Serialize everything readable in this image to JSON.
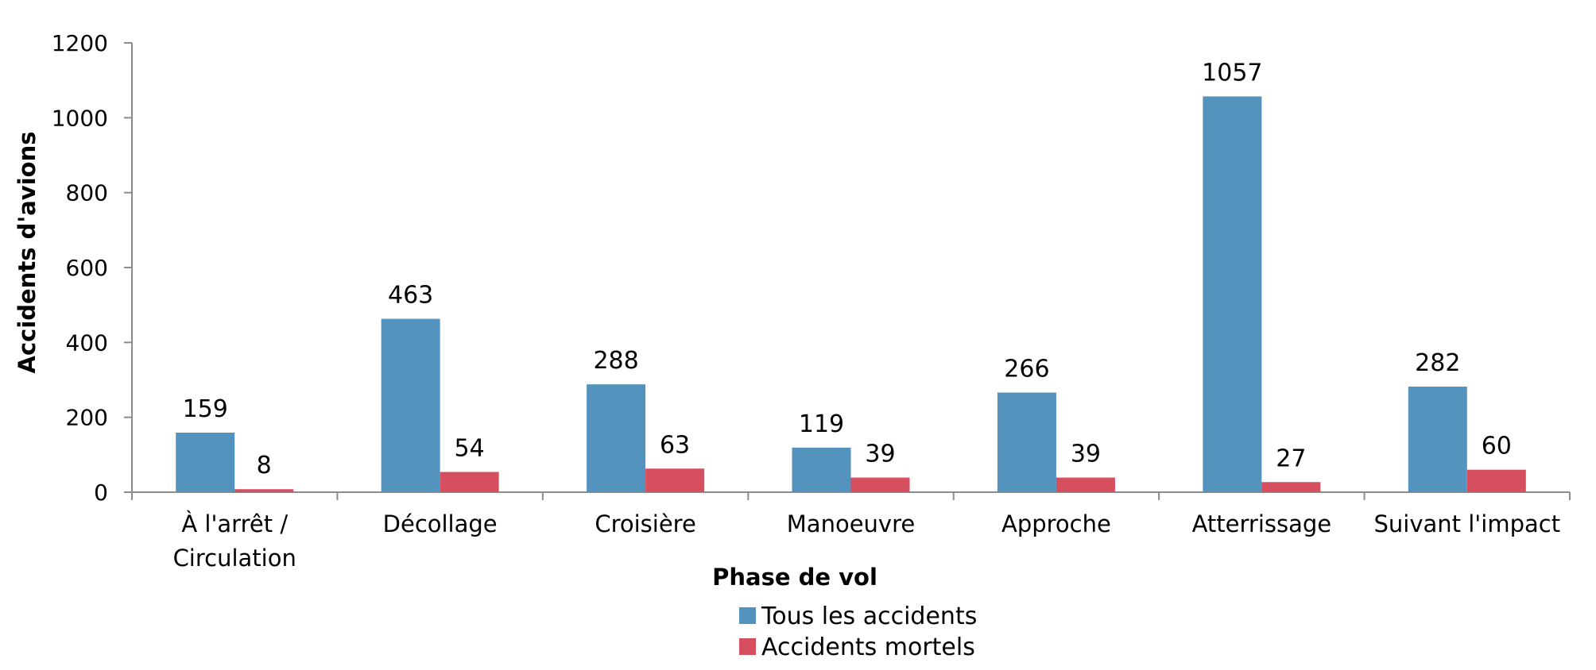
{
  "chart_data": {
    "type": "bar",
    "title": "",
    "xlabel": "Phase de vol",
    "ylabel": "Accidents d'avions",
    "ylim": [
      0,
      1200
    ],
    "yticks": [
      0,
      200,
      400,
      600,
      800,
      1000,
      1200
    ],
    "grid": false,
    "legend_position": "bottom",
    "categories": [
      [
        "À l'arrêt /",
        "Circulation"
      ],
      [
        "Décollage"
      ],
      [
        "Croisière"
      ],
      [
        "Manoeuvre"
      ],
      [
        "Approche"
      ],
      [
        "Atterrissage"
      ],
      [
        "Suivant l'impact"
      ]
    ],
    "series": [
      {
        "name": "Tous les accidents",
        "color": "#5593bf",
        "values": [
          159,
          463,
          288,
          119,
          266,
          1057,
          282
        ]
      },
      {
        "name": "Accidents mortels",
        "color": "#d64f5f",
        "values": [
          8,
          54,
          63,
          39,
          39,
          27,
          60
        ]
      }
    ]
  }
}
